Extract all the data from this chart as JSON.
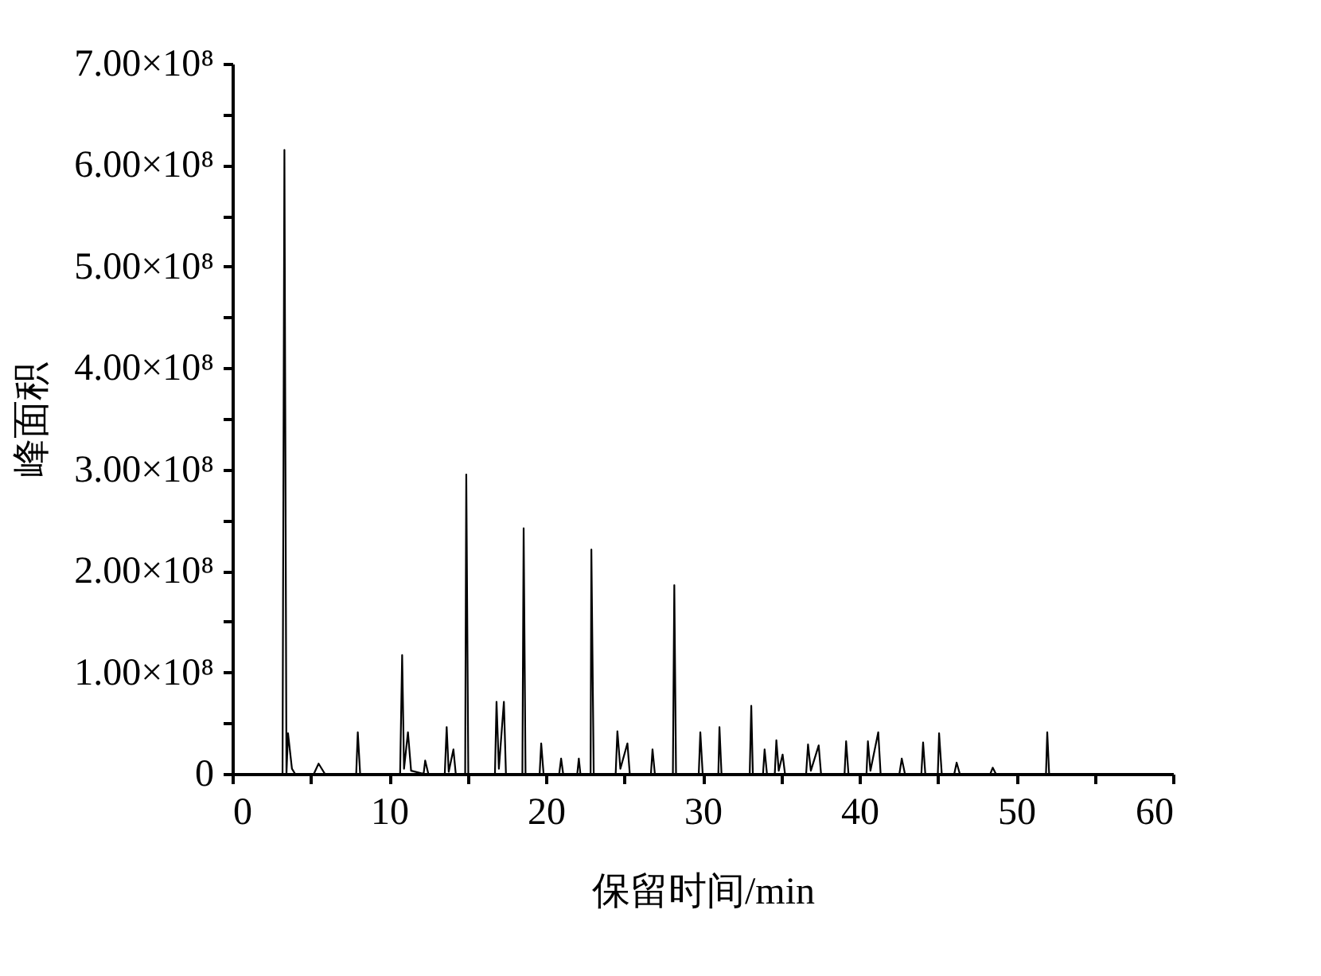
{
  "chart_data": {
    "type": "line",
    "xlabel": "保留时间/min",
    "ylabel": "峰面积",
    "x": [
      2.8,
      3.2,
      3.32,
      3.45,
      3.55,
      3.8,
      4.0,
      5.2,
      5.5,
      5.9,
      7.9,
      8.0,
      8.15,
      10.7,
      10.83,
      10.95,
      11.2,
      11.4,
      12.2,
      12.3,
      12.5,
      13.55,
      13.67,
      13.8,
      14.1,
      14.25,
      14.85,
      14.92,
      15.05,
      16.75,
      16.85,
      17.0,
      17.32,
      17.45,
      18.5,
      18.58,
      18.7,
      19.6,
      19.7,
      19.85,
      20.85,
      20.97,
      21.1,
      22.0,
      22.1,
      22.2,
      22.85,
      22.9,
      23.05,
      24.45,
      24.56,
      24.75,
      25.2,
      25.35,
      26.7,
      26.8,
      26.95,
      28.1,
      28.19,
      28.3,
      29.75,
      29.85,
      30.0,
      31.0,
      31.07,
      31.2,
      33.0,
      33.1,
      33.2,
      33.85,
      33.95,
      34.1,
      34.6,
      34.7,
      34.85,
      35.1,
      35.25,
      36.6,
      36.72,
      36.9,
      37.4,
      37.55,
      39.05,
      39.15,
      39.3,
      40.45,
      40.54,
      40.7,
      41.2,
      41.35,
      42.55,
      42.7,
      42.9,
      43.95,
      44.06,
      44.2,
      45.0,
      45.08,
      45.25,
      46.05,
      46.2,
      46.4,
      48.35,
      48.5,
      48.7,
      51.9,
      51.98,
      52.1,
      56.5
    ],
    "series": [
      {
        "color": "#000000",
        "values": [
          0,
          0,
          615000000,
          0,
          40000000,
          5000000,
          0,
          0,
          10000000,
          0,
          0,
          41000000,
          0,
          0,
          117000000,
          5000000,
          41000000,
          3000000,
          0,
          13000000,
          0,
          0,
          46000000,
          2000000,
          24000000,
          0,
          0,
          295000000,
          0,
          0,
          71000000,
          5000000,
          71000000,
          0,
          0,
          242000000,
          0,
          0,
          30000000,
          0,
          0,
          15000000,
          0,
          0,
          15000000,
          0,
          0,
          221000000,
          0,
          0,
          42000000,
          5000000,
          30000000,
          0,
          0,
          24000000,
          0,
          0,
          186000000,
          0,
          0,
          41000000,
          0,
          0,
          46000000,
          0,
          0,
          67000000,
          0,
          0,
          24000000,
          0,
          0,
          33000000,
          3000000,
          19000000,
          0,
          0,
          29000000,
          3000000,
          28000000,
          0,
          0,
          32000000,
          0,
          0,
          32000000,
          3000000,
          41000000,
          0,
          0,
          15000000,
          0,
          0,
          31000000,
          0,
          0,
          40000000,
          0,
          0,
          11000000,
          0,
          0,
          6000000,
          0,
          0,
          41000000,
          0,
          0
        ]
      }
    ],
    "xlim": [
      0,
      60
    ],
    "xticks": [
      0,
      {
        "value": 5,
        "label": null
      },
      10,
      {
        "value": 15,
        "label": null
      },
      20,
      {
        "value": 25,
        "label": null
      },
      30,
      {
        "value": 35,
        "label": null
      },
      40,
      {
        "value": 45,
        "label": null
      },
      50,
      {
        "value": 55,
        "label": null
      },
      60
    ],
    "ylim": [
      0,
      700000000
    ],
    "yticks": [
      0,
      {
        "value": 50000000,
        "label": null
      },
      {
        "value": 100000000,
        "label": "1.00×10⁸"
      },
      {
        "value": 150000000,
        "label": null
      },
      {
        "value": 200000000,
        "label": "2.00×10⁸"
      },
      {
        "value": 250000000,
        "label": null
      },
      {
        "value": 300000000,
        "label": "3.00×10⁸"
      },
      {
        "value": 350000000,
        "label": null
      },
      {
        "value": 400000000,
        "label": "4.00×10⁸"
      },
      {
        "value": 450000000,
        "label": null
      },
      {
        "value": 500000000,
        "label": "5.00×10⁸"
      },
      {
        "value": 550000000,
        "label": null
      },
      {
        "value": 600000000,
        "label": "6.00×10⁸"
      },
      {
        "value": 650000000,
        "label": null
      },
      {
        "value": 700000000,
        "label": "7.00×10⁸"
      }
    ],
    "grid": false,
    "legend": false
  }
}
